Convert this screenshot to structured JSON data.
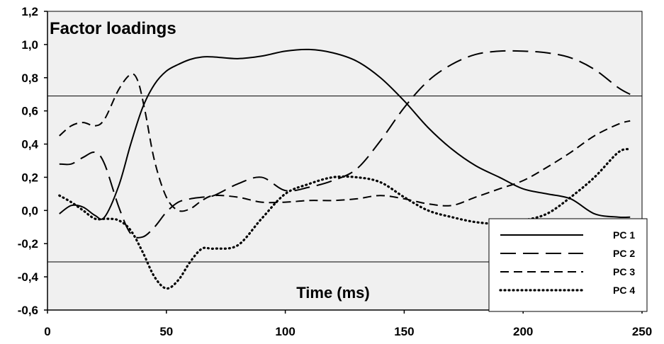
{
  "chart_data": {
    "type": "line",
    "title": "Factor loadings",
    "xlabel": "Time (ms)",
    "ylabel": "",
    "xlim": [
      0,
      250
    ],
    "ylim": [
      -0.6,
      1.2
    ],
    "x_ticks": [
      "0",
      "50",
      "100",
      "150",
      "200",
      "250"
    ],
    "x_tick_values": [
      0,
      50,
      100,
      150,
      200,
      250
    ],
    "y_ticks": [
      "1,2",
      "1,0",
      "0,8",
      "0,6",
      "0,4",
      "0,2",
      "0,0",
      "-0,2",
      "-0,4",
      "-0,6"
    ],
    "y_tick_values": [
      1.2,
      1.0,
      0.8,
      0.6,
      0.4,
      0.2,
      0.0,
      -0.2,
      -0.4,
      -0.6
    ],
    "reference_lines": [
      0.69,
      -0.31
    ],
    "legend_position": "bottom-right",
    "grid": false,
    "background": "#f0f0f0",
    "series": [
      {
        "name": "PC 1",
        "dash": "solid",
        "x": [
          5,
          10,
          15,
          20,
          24,
          30,
          35,
          40,
          45,
          50,
          55,
          60,
          65,
          70,
          80,
          90,
          100,
          110,
          120,
          130,
          140,
          150,
          160,
          170,
          180,
          190,
          200,
          210,
          220,
          230,
          240,
          245
        ],
        "y": [
          -0.02,
          0.03,
          0.02,
          -0.03,
          -0.04,
          0.15,
          0.4,
          0.62,
          0.76,
          0.84,
          0.88,
          0.91,
          0.925,
          0.925,
          0.915,
          0.93,
          0.96,
          0.97,
          0.95,
          0.9,
          0.8,
          0.66,
          0.5,
          0.37,
          0.27,
          0.2,
          0.13,
          0.1,
          0.07,
          -0.02,
          -0.04,
          -0.04
        ]
      },
      {
        "name": "PC 2",
        "dash": "long",
        "x": [
          5,
          10,
          15,
          20,
          24,
          30,
          35,
          40,
          45,
          50,
          55,
          60,
          65,
          70,
          80,
          90,
          100,
          110,
          120,
          130,
          140,
          150,
          160,
          170,
          180,
          190,
          200,
          210,
          220,
          230,
          240,
          245
        ],
        "y": [
          0.28,
          0.28,
          0.32,
          0.35,
          0.28,
          0.02,
          -0.14,
          -0.16,
          -0.1,
          -0.01,
          0.05,
          0.07,
          0.08,
          0.09,
          0.16,
          0.2,
          0.12,
          0.14,
          0.18,
          0.25,
          0.42,
          0.62,
          0.78,
          0.88,
          0.94,
          0.96,
          0.96,
          0.95,
          0.92,
          0.85,
          0.74,
          0.7
        ]
      },
      {
        "name": "PC 3",
        "dash": "short",
        "x": [
          5,
          10,
          15,
          20,
          24,
          30,
          35,
          38,
          41,
          45,
          50,
          55,
          60,
          65,
          70,
          80,
          90,
          100,
          110,
          120,
          130,
          140,
          150,
          160,
          170,
          180,
          190,
          200,
          210,
          220,
          230,
          240,
          245
        ],
        "y": [
          0.45,
          0.51,
          0.53,
          0.51,
          0.55,
          0.73,
          0.82,
          0.78,
          0.6,
          0.3,
          0.08,
          0.0,
          0.01,
          0.06,
          0.09,
          0.08,
          0.05,
          0.05,
          0.06,
          0.06,
          0.07,
          0.09,
          0.07,
          0.04,
          0.03,
          0.08,
          0.13,
          0.18,
          0.26,
          0.35,
          0.45,
          0.52,
          0.54
        ]
      },
      {
        "name": "PC 4",
        "dash": "dotted",
        "x": [
          5,
          10,
          15,
          20,
          25,
          30,
          35,
          40,
          45,
          50,
          55,
          60,
          65,
          70,
          80,
          90,
          100,
          110,
          120,
          130,
          140,
          150,
          160,
          170,
          180,
          190,
          200,
          210,
          220,
          230,
          240,
          245
        ],
        "y": [
          0.09,
          0.05,
          0.0,
          -0.05,
          -0.05,
          -0.06,
          -0.12,
          -0.25,
          -0.4,
          -0.47,
          -0.42,
          -0.31,
          -0.23,
          -0.23,
          -0.21,
          -0.05,
          0.1,
          0.16,
          0.2,
          0.2,
          0.17,
          0.08,
          0.0,
          -0.04,
          -0.07,
          -0.08,
          -0.06,
          -0.02,
          0.08,
          0.2,
          0.35,
          0.37
        ]
      }
    ]
  }
}
